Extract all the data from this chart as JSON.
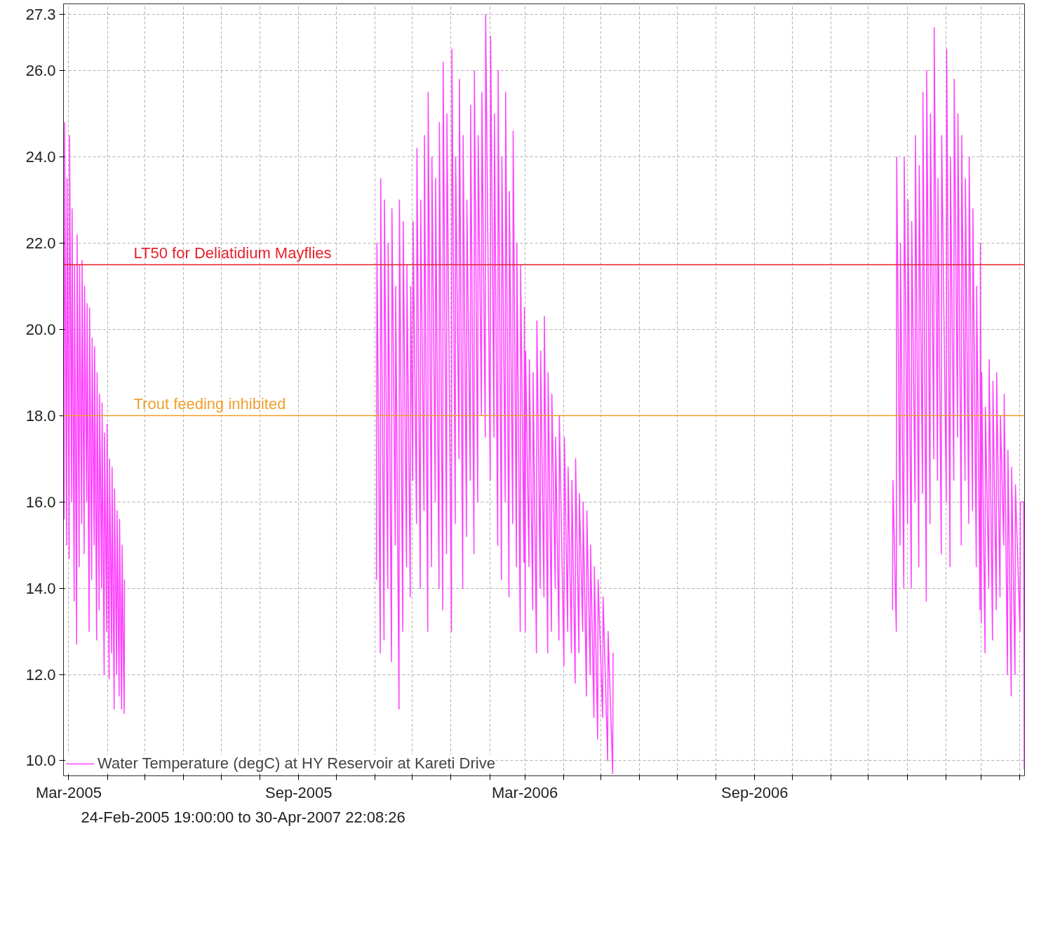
{
  "chart_data": {
    "type": "line",
    "xlim": [
      "2005-02-24T19:00",
      "2007-04-05"
    ],
    "ylim": [
      9.65,
      27.55
    ],
    "xticks": [
      {
        "value": "2005-03-01",
        "label": "Mar-2005"
      },
      {
        "value": "2005-04-01",
        "label": null
      },
      {
        "value": "2005-05-01",
        "label": null
      },
      {
        "value": "2005-06-01",
        "label": null
      },
      {
        "value": "2005-07-01",
        "label": null
      },
      {
        "value": "2005-08-01",
        "label": null
      },
      {
        "value": "2005-09-01",
        "label": "Sep-2005"
      },
      {
        "value": "2005-10-01",
        "label": null
      },
      {
        "value": "2005-11-01",
        "label": null
      },
      {
        "value": "2005-12-01",
        "label": null
      },
      {
        "value": "2006-01-01",
        "label": null
      },
      {
        "value": "2006-02-01",
        "label": null
      },
      {
        "value": "2006-03-01",
        "label": "Mar-2006"
      },
      {
        "value": "2006-04-01",
        "label": null
      },
      {
        "value": "2006-05-01",
        "label": null
      },
      {
        "value": "2006-06-01",
        "label": null
      },
      {
        "value": "2006-07-01",
        "label": null
      },
      {
        "value": "2006-08-01",
        "label": null
      },
      {
        "value": "2006-09-01",
        "label": "Sep-2006"
      },
      {
        "value": "2006-10-01",
        "label": null
      },
      {
        "value": "2006-11-01",
        "label": null
      },
      {
        "value": "2006-12-01",
        "label": null
      },
      {
        "value": "2007-01-01",
        "label": null
      },
      {
        "value": "2007-02-01",
        "label": null
      },
      {
        "value": "2007-03-01",
        "label": null
      },
      {
        "value": "2007-04-01",
        "label": null
      }
    ],
    "yticks": [
      {
        "value": 10,
        "label": "10.0"
      },
      {
        "value": 12,
        "label": "12.0"
      },
      {
        "value": 14,
        "label": "14.0"
      },
      {
        "value": 16,
        "label": "16.0"
      },
      {
        "value": 18,
        "label": "18.0"
      },
      {
        "value": 20,
        "label": "20.0"
      },
      {
        "value": 22,
        "label": "22.0"
      },
      {
        "value": 24,
        "label": "24.0"
      },
      {
        "value": 26,
        "label": "26.0"
      },
      27.3
    ],
    "grid": true,
    "legend": "bottom left",
    "line_style": "solid",
    "annotations": [
      "24-Feb-2005 19:00:00 to 30-Apr-2007 22:08:26"
    ],
    "ref_lines": [
      {
        "axis": "y",
        "value": 21.5,
        "label": "LT50 for Deliatidium Mayflies",
        "color": "#e8202a"
      },
      {
        "axis": "y",
        "value": 18.0,
        "label": "Trout feeding inhibited",
        "color": "#f0a030"
      }
    ],
    "series": [
      {
        "name": "Water Temperature (degC) at HY Reservoir at Kareti Drive",
        "color": "#ff40ff",
        "x": [
          "2005-02-25T08:00",
          "2005-02-25T16:00",
          "2005-02-27T08:00",
          "2005-02-27T16:00",
          "2005-03-01T08:00",
          "2005-03-01T16:00",
          "2005-03-03T08:00",
          "2005-03-03T16:00",
          "2005-03-05T08:00",
          "2005-03-05T16:00",
          "2005-03-07T08:00",
          "2005-03-07T16:00",
          "2005-03-09T08:00",
          "2005-03-09T16:00",
          "2005-03-11T08:00",
          "2005-03-11T16:00",
          "2005-03-13T08:00",
          "2005-03-13T16:00",
          "2005-03-15T08:00",
          "2005-03-15T16:00",
          "2005-03-17T08:00",
          "2005-03-17T16:00",
          "2005-03-19T08:00",
          "2005-03-19T16:00",
          "2005-03-21T08:00",
          "2005-03-21T16:00",
          "2005-03-23T08:00",
          "2005-03-23T16:00",
          "2005-03-25T08:00",
          "2005-03-25T16:00",
          "2005-03-27T08:00",
          "2005-03-27T16:00",
          "2005-03-29T08:00",
          "2005-03-29T16:00",
          "2005-03-31T08:00",
          "2005-03-31T16:00",
          "2005-04-02T08:00",
          "2005-04-02T16:00",
          "2005-04-04T08:00",
          "2005-04-04T16:00",
          "2005-04-06T08:00",
          "2005-04-06T16:00",
          "2005-04-08T08:00",
          "2005-04-08T16:00",
          "2005-04-10T08:00",
          "2005-04-10T16:00",
          "2005-04-12T08:00",
          "2005-04-12T16:00",
          "2005-04-14T08:00",
          "2005-04-14T16:00",
          "2005-07-01",
          "2005-11-02T08:00",
          "2005-11-02T16:00",
          "2005-11-05T08:00",
          "2005-11-05T16:00",
          "2005-11-08T08:00",
          "2005-11-08T16:00",
          "2005-11-11T08:00",
          "2005-11-11T16:00",
          "2005-11-14T08:00",
          "2005-11-14T16:00",
          "2005-11-17T08:00",
          "2005-11-17T16:00",
          "2005-11-20T08:00",
          "2005-11-20T16:00",
          "2005-11-23T08:00",
          "2005-11-23T16:00",
          "2005-11-26T08:00",
          "2005-11-26T16:00",
          "2005-11-29T08:00",
          "2005-11-29T16:00",
          "2005-12-01T08:00",
          "2005-12-01T16:00",
          "2005-12-04T08:00",
          "2005-12-04T16:00",
          "2005-12-07T08:00",
          "2005-12-07T16:00",
          "2005-12-10T08:00",
          "2005-12-10T16:00",
          "2005-12-13T08:00",
          "2005-12-13T16:00",
          "2005-12-16T08:00",
          "2005-12-16T16:00",
          "2005-12-19T08:00",
          "2005-12-19T16:00",
          "2005-12-22T08:00",
          "2005-12-22T16:00",
          "2005-12-25T08:00",
          "2005-12-25T16:00",
          "2005-12-28T08:00",
          "2005-12-28T16:00",
          "2006-01-01T08:00",
          "2006-01-01T16:00",
          "2006-01-04T08:00",
          "2006-01-04T16:00",
          "2006-01-07T08:00",
          "2006-01-07T16:00",
          "2006-01-10T08:00",
          "2006-01-10T16:00",
          "2006-01-13T08:00",
          "2006-01-13T16:00",
          "2006-01-16T08:00",
          "2006-01-16T16:00",
          "2006-01-19T08:00",
          "2006-01-19T16:00",
          "2006-01-22T08:00",
          "2006-01-22T16:00",
          "2006-01-25T08:00",
          "2006-01-25T16:00",
          "2006-01-28T08:00",
          "2006-01-28T16:00",
          "2006-02-01T08:00",
          "2006-02-01T16:00",
          "2006-02-04T08:00",
          "2006-02-04T16:00",
          "2006-02-07T08:00",
          "2006-02-07T16:00",
          "2006-02-10T08:00",
          "2006-02-10T16:00",
          "2006-02-13T08:00",
          "2006-02-13T16:00",
          "2006-02-16T08:00",
          "2006-02-16T16:00",
          "2006-02-19T08:00",
          "2006-02-19T16:00",
          "2006-02-22T08:00",
          "2006-02-22T16:00",
          "2006-02-25T08:00",
          "2006-02-25T16:00",
          "2006-02-28T08:00",
          "2006-02-28T16:00",
          "2006-03-01T08:00",
          "2006-03-01T16:00",
          "2006-03-04T08:00",
          "2006-03-04T16:00",
          "2006-03-07T08:00",
          "2006-03-07T16:00",
          "2006-03-10T08:00",
          "2006-03-10T16:00",
          "2006-03-13T08:00",
          "2006-03-13T16:00",
          "2006-03-16T08:00",
          "2006-03-16T16:00",
          "2006-03-19T08:00",
          "2006-03-19T16:00",
          "2006-03-22T08:00",
          "2006-03-22T16:00",
          "2006-03-25T08:00",
          "2006-03-25T16:00",
          "2006-03-28T08:00",
          "2006-03-28T16:00",
          "2006-04-01T08:00",
          "2006-04-01T16:00",
          "2006-04-04T08:00",
          "2006-04-04T16:00",
          "2006-04-07T08:00",
          "2006-04-07T16:00",
          "2006-04-10T08:00",
          "2006-04-10T16:00",
          "2006-04-13T08:00",
          "2006-04-13T16:00",
          "2006-04-16T08:00",
          "2006-04-16T16:00",
          "2006-04-19T08:00",
          "2006-04-19T16:00",
          "2006-04-22T08:00",
          "2006-04-22T16:00",
          "2006-04-25T08:00",
          "2006-04-25T16:00",
          "2006-04-28T08:00",
          "2006-04-28T16:00",
          "2006-05-02T08:00",
          "2006-05-02T16:00",
          "2006-05-06T08:00",
          "2006-05-06T16:00",
          "2006-05-10T08:00",
          "2006-05-10T16:00",
          "2006-09-01",
          "2006-12-20T08:00",
          "2006-12-20T16:00",
          "2006-12-23T08:00",
          "2006-12-23T16:00",
          "2006-12-26T08:00",
          "2006-12-26T16:00",
          "2006-12-29T08:00",
          "2006-12-29T16:00",
          "2007-01-01T08:00",
          "2007-01-01T16:00",
          "2007-01-04T08:00",
          "2007-01-04T16:00",
          "2007-01-07T08:00",
          "2007-01-07T16:00",
          "2007-01-10T08:00",
          "2007-01-10T16:00",
          "2007-01-13T08:00",
          "2007-01-13T16:00",
          "2007-01-16T08:00",
          "2007-01-16T16:00",
          "2007-01-19T08:00",
          "2007-01-19T16:00",
          "2007-01-22T08:00",
          "2007-01-22T16:00",
          "2007-01-25T08:00",
          "2007-01-25T16:00",
          "2007-01-28T08:00",
          "2007-01-28T16:00",
          "2007-02-01T08:00",
          "2007-02-01T16:00",
          "2007-02-04T08:00",
          "2007-02-04T16:00",
          "2007-02-07T08:00",
          "2007-02-07T16:00",
          "2007-02-10T08:00",
          "2007-02-10T16:00",
          "2007-02-13T08:00",
          "2007-02-13T16:00",
          "2007-02-16T08:00",
          "2007-02-16T16:00",
          "2007-02-19T08:00",
          "2007-02-19T16:00",
          "2007-02-22T08:00",
          "2007-02-22T16:00",
          "2007-02-25T08:00",
          "2007-02-25T16:00",
          "2007-02-28T08:00",
          "2007-02-28T16:00",
          "2007-03-01T08:00",
          "2007-03-01T16:00",
          "2007-03-04T08:00",
          "2007-03-04T16:00",
          "2007-03-07T08:00",
          "2007-03-07T16:00",
          "2007-03-10T08:00",
          "2007-03-10T16:00",
          "2007-03-13T08:00",
          "2007-03-13T16:00",
          "2007-03-16T08:00",
          "2007-03-16T16:00",
          "2007-03-19T08:00",
          "2007-03-19T16:00",
          "2007-03-22T08:00",
          "2007-03-22T16:00",
          "2007-03-25T08:00",
          "2007-03-25T16:00",
          "2007-03-28T08:00",
          "2007-03-28T16:00",
          "2007-04-01T08:00",
          "2007-04-01T16:00",
          "2007-04-04T08:00",
          "2007-04-04T16:00"
        ],
        "values": [
          15.6,
          24.8,
          15.0,
          23.5,
          14.7,
          24.5,
          16.0,
          22.8,
          13.7,
          21.5,
          12.7,
          22.2,
          14.5,
          21.5,
          15.5,
          21.6,
          14.8,
          21.0,
          16.0,
          20.6,
          13.0,
          20.5,
          14.2,
          19.8,
          15.0,
          19.6,
          12.8,
          19.0,
          13.5,
          18.5,
          14.0,
          18.3,
          12.0,
          17.6,
          13.0,
          17.8,
          11.9,
          17.0,
          12.5,
          16.8,
          11.2,
          16.3,
          12.0,
          15.8,
          11.5,
          15.6,
          11.2,
          15.0,
          11.1,
          14.2,
          null,
          14.2,
          22.0,
          12.5,
          23.5,
          12.8,
          23.0,
          14.0,
          22.0,
          12.3,
          22.8,
          15.0,
          21.0,
          11.2,
          23.0,
          13.0,
          22.5,
          14.5,
          21.5,
          13.8,
          21.0,
          16.5,
          22.5,
          15.5,
          24.2,
          14.0,
          23.0,
          15.8,
          24.5,
          13.0,
          25.5,
          14.5,
          24.0,
          16.0,
          23.5,
          14.0,
          24.8,
          13.5,
          26.2,
          14.8,
          25.0,
          13.0,
          26.5,
          15.5,
          24.0,
          17.0,
          25.8,
          14.0,
          24.5,
          15.2,
          23.0,
          16.5,
          25.2,
          14.8,
          26.0,
          16.0,
          24.5,
          18.0,
          25.5,
          17.5,
          27.3,
          16.5,
          26.8,
          17.5,
          25.0,
          15.0,
          26.0,
          14.2,
          24.0,
          16.0,
          25.5,
          13.8,
          23.2,
          15.5,
          24.6,
          14.5,
          22.0,
          13.0,
          21.5,
          14.6,
          20.5,
          13.0,
          19.5,
          14.5,
          19.3,
          13.5,
          19.0,
          12.5,
          20.2,
          14.0,
          19.5,
          13.8,
          20.3,
          12.5,
          19.0,
          13.0,
          18.5,
          14.0,
          17.5,
          12.8,
          18.0,
          12.2,
          17.5,
          13.0,
          16.8,
          12.5,
          16.5,
          11.8,
          17.0,
          12.5,
          16.2,
          13.0,
          16.0,
          11.5,
          15.8,
          12.0,
          15.0,
          11.0,
          14.5,
          10.5,
          14.2,
          11.0,
          13.8,
          10.0,
          13.0,
          9.7,
          12.5,
          null,
          13.5,
          16.5,
          13.0,
          24.0,
          15.0,
          22.0,
          14.0,
          24.0,
          15.5,
          23.0,
          14.0,
          22.5,
          16.0,
          24.5,
          14.5,
          23.8,
          16.2,
          25.5,
          13.7,
          26.0,
          15.5,
          25.0,
          17.0,
          27.0,
          16.5,
          23.5,
          14.8,
          24.5,
          16.0,
          26.5,
          14.5,
          24.0,
          16.5,
          25.8,
          17.5,
          25.0,
          15.0,
          24.5,
          16.5,
          23.5,
          15.5,
          24.0,
          15.8,
          22.8,
          14.5,
          21.0,
          13.5,
          22.0,
          13.2,
          19.0,
          12.5,
          18.2,
          14.0,
          19.3,
          12.8,
          18.8,
          13.5,
          19.0,
          13.8,
          18.0,
          15.0,
          18.5,
          12.0,
          17.2,
          11.5,
          16.8,
          12.0,
          16.4,
          13.0,
          16.0,
          16.0,
          9.8
        ]
      }
    ]
  }
}
